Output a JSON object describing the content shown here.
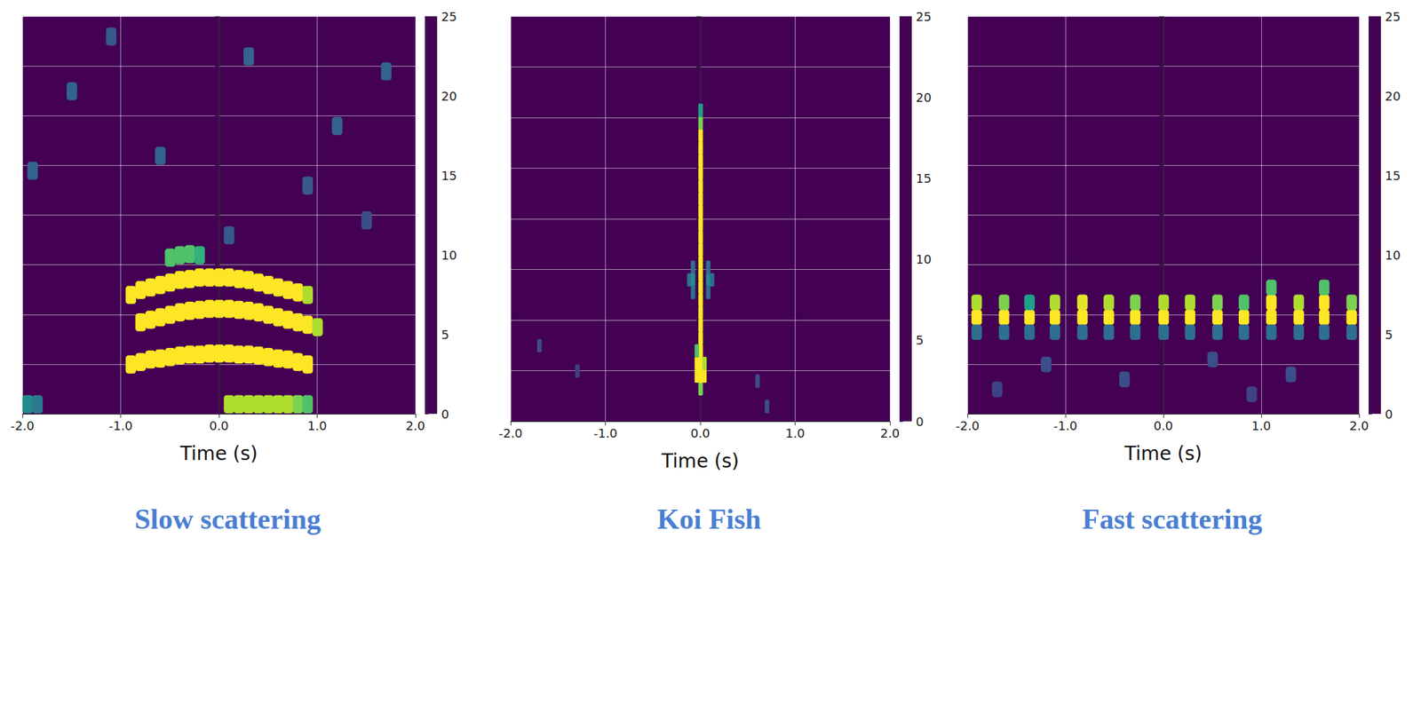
{
  "chart_data": [
    {
      "type": "heatmap",
      "title": "Slow scattering",
      "xlabel": "Time (s)",
      "xlim": [
        -2,
        2
      ],
      "xticks": [
        {
          "value": -2,
          "label": "-2.0"
        },
        {
          "value": -1,
          "label": "-1.0"
        },
        {
          "value": 0,
          "label": "0.0"
        },
        {
          "value": 1,
          "label": "1.0"
        },
        {
          "value": 2,
          "label": "2.0"
        }
      ],
      "ylim": [
        0,
        8
      ],
      "yticks": [
        0,
        1,
        2,
        3,
        4,
        5,
        6,
        7,
        8
      ],
      "tick_labels": "x",
      "grid": true,
      "colorbar": {
        "range": [
          0,
          25
        ],
        "ticks": [
          0,
          5,
          10,
          15,
          20,
          25
        ]
      },
      "cell_size": [
        0.1,
        0.35
      ],
      "cells": [
        [
          -0.9,
          1.0,
          25
        ],
        [
          -0.8,
          1.05,
          25
        ],
        [
          -0.7,
          1.1,
          25
        ],
        [
          -0.6,
          1.12,
          25
        ],
        [
          -0.5,
          1.15,
          25
        ],
        [
          -0.4,
          1.18,
          25
        ],
        [
          -0.3,
          1.2,
          25
        ],
        [
          -0.2,
          1.2,
          25
        ],
        [
          -0.1,
          1.22,
          25
        ],
        [
          0.0,
          1.22,
          25
        ],
        [
          0.1,
          1.22,
          25
        ],
        [
          0.2,
          1.2,
          25
        ],
        [
          0.3,
          1.2,
          25
        ],
        [
          0.4,
          1.18,
          25
        ],
        [
          0.5,
          1.15,
          25
        ],
        [
          0.6,
          1.12,
          25
        ],
        [
          0.7,
          1.1,
          25
        ],
        [
          0.8,
          1.05,
          25
        ],
        [
          0.9,
          1.0,
          25
        ],
        [
          -0.8,
          1.85,
          25
        ],
        [
          -0.7,
          1.9,
          25
        ],
        [
          -0.6,
          1.95,
          25
        ],
        [
          -0.5,
          2.0,
          25
        ],
        [
          -0.4,
          2.05,
          25
        ],
        [
          -0.3,
          2.08,
          25
        ],
        [
          -0.2,
          2.1,
          25
        ],
        [
          -0.1,
          2.12,
          25
        ],
        [
          0.0,
          2.12,
          25
        ],
        [
          0.1,
          2.12,
          25
        ],
        [
          0.2,
          2.1,
          25
        ],
        [
          0.3,
          2.08,
          25
        ],
        [
          0.4,
          2.05,
          25
        ],
        [
          0.5,
          2.0,
          25
        ],
        [
          0.6,
          1.95,
          25
        ],
        [
          0.7,
          1.9,
          25
        ],
        [
          0.8,
          1.85,
          25
        ],
        [
          0.9,
          1.8,
          25
        ],
        [
          1.0,
          1.75,
          22
        ],
        [
          -0.9,
          2.4,
          25
        ],
        [
          -0.8,
          2.5,
          25
        ],
        [
          -0.7,
          2.55,
          25
        ],
        [
          -0.6,
          2.6,
          25
        ],
        [
          -0.5,
          2.65,
          25
        ],
        [
          -0.4,
          2.7,
          25
        ],
        [
          -0.3,
          2.72,
          25
        ],
        [
          -0.2,
          2.75,
          25
        ],
        [
          -0.1,
          2.75,
          25
        ],
        [
          0.0,
          2.75,
          25
        ],
        [
          0.1,
          2.75,
          25
        ],
        [
          0.2,
          2.72,
          25
        ],
        [
          0.3,
          2.7,
          25
        ],
        [
          0.4,
          2.65,
          25
        ],
        [
          0.5,
          2.6,
          25
        ],
        [
          0.6,
          2.55,
          25
        ],
        [
          0.7,
          2.5,
          25
        ],
        [
          0.8,
          2.45,
          25
        ],
        [
          0.9,
          2.4,
          22
        ],
        [
          -0.5,
          3.15,
          18
        ],
        [
          -0.4,
          3.2,
          18
        ],
        [
          -0.3,
          3.22,
          18
        ],
        [
          -0.2,
          3.2,
          16
        ],
        [
          0.1,
          0.2,
          22
        ],
        [
          0.2,
          0.2,
          22
        ],
        [
          0.3,
          0.2,
          22
        ],
        [
          0.4,
          0.2,
          22
        ],
        [
          0.5,
          0.2,
          22
        ],
        [
          0.6,
          0.2,
          22
        ],
        [
          0.7,
          0.2,
          22
        ],
        [
          0.8,
          0.2,
          20
        ],
        [
          0.9,
          0.2,
          18
        ],
        [
          -1.95,
          0.2,
          12
        ],
        [
          -1.85,
          0.2,
          10
        ],
        [
          -1.5,
          6.5,
          8
        ],
        [
          0.3,
          7.2,
          8
        ],
        [
          1.2,
          5.8,
          8
        ],
        [
          -0.6,
          5.2,
          8
        ],
        [
          1.7,
          6.9,
          8
        ],
        [
          -1.9,
          4.9,
          8
        ],
        [
          0.9,
          4.6,
          7
        ],
        [
          -1.1,
          7.6,
          7
        ],
        [
          0.1,
          3.6,
          7
        ],
        [
          1.5,
          3.9,
          6
        ]
      ]
    },
    {
      "type": "heatmap",
      "title": "Koi Fish",
      "xlabel": "Time (s)",
      "xlim": [
        -2,
        2
      ],
      "xticks": [
        {
          "value": -2,
          "label": "-2.0"
        },
        {
          "value": -1,
          "label": "-1.0"
        },
        {
          "value": 0,
          "label": "0.0"
        },
        {
          "value": 1,
          "label": "1.0"
        },
        {
          "value": 2,
          "label": "2.0"
        }
      ],
      "ylim": [
        0,
        8
      ],
      "yticks": [
        0,
        1,
        2,
        3,
        4,
        5,
        6,
        7,
        8
      ],
      "tick_labels": "x",
      "grid": true,
      "colorbar": {
        "range": [
          0,
          25
        ],
        "ticks": [
          0,
          5,
          10,
          15,
          20,
          25
        ]
      },
      "cell_size": [
        0.04,
        0.25
      ],
      "cells": [
        [
          0,
          0.65,
          20
        ],
        [
          0,
          0.9,
          25
        ],
        [
          0,
          1.15,
          25
        ],
        [
          0,
          1.4,
          25
        ],
        [
          0,
          1.65,
          25
        ],
        [
          0,
          1.9,
          25
        ],
        [
          0,
          2.15,
          25
        ],
        [
          0,
          2.4,
          25
        ],
        [
          0,
          2.65,
          25
        ],
        [
          0,
          2.9,
          25
        ],
        [
          0,
          3.15,
          25
        ],
        [
          0,
          3.4,
          25
        ],
        [
          0,
          3.65,
          25
        ],
        [
          0,
          3.9,
          25
        ],
        [
          0,
          4.15,
          25
        ],
        [
          0,
          4.4,
          25
        ],
        [
          0,
          4.65,
          25
        ],
        [
          0,
          4.9,
          25
        ],
        [
          0,
          5.15,
          25
        ],
        [
          0,
          5.4,
          25
        ],
        [
          0,
          5.65,
          25
        ],
        [
          0,
          5.9,
          20
        ],
        [
          0,
          6.15,
          14
        ],
        [
          -0.04,
          0.9,
          25
        ],
        [
          0.04,
          0.9,
          25
        ],
        [
          -0.04,
          1.15,
          25
        ],
        [
          0.04,
          1.15,
          22
        ],
        [
          -0.04,
          1.4,
          18
        ],
        [
          -0.12,
          2.8,
          9
        ],
        [
          -0.08,
          2.8,
          12
        ],
        [
          0.08,
          2.8,
          12
        ],
        [
          0.12,
          2.8,
          9
        ],
        [
          -0.08,
          2.55,
          9
        ],
        [
          0.08,
          2.55,
          9
        ],
        [
          -0.08,
          3.05,
          9
        ],
        [
          0.08,
          3.05,
          9
        ],
        [
          -1.7,
          1.5,
          6
        ],
        [
          0.6,
          0.8,
          6
        ],
        [
          -1.3,
          1.0,
          5
        ],
        [
          0.7,
          0.3,
          6
        ]
      ]
    },
    {
      "type": "heatmap",
      "title": "Fast scattering",
      "xlabel": "Time (s)",
      "xlim": [
        -2,
        2
      ],
      "xticks": [
        {
          "value": -2,
          "label": "-2.0"
        },
        {
          "value": -1,
          "label": "-1.0"
        },
        {
          "value": 0,
          "label": "0.0"
        },
        {
          "value": 1,
          "label": "1.0"
        },
        {
          "value": 2,
          "label": "2.0"
        }
      ],
      "ylim": [
        0,
        8
      ],
      "yticks": [
        0,
        1,
        2,
        3,
        4,
        5,
        6,
        7,
        8
      ],
      "tick_labels": "x",
      "grid": true,
      "colorbar": {
        "range": [
          0,
          25
        ],
        "ticks": [
          0,
          5,
          10,
          15,
          20,
          25
        ]
      },
      "cell_size": [
        0.1,
        0.3
      ],
      "cells": [
        [
          -1.91,
          1.95,
          25
        ],
        [
          -1.91,
          2.25,
          22
        ],
        [
          -1.91,
          1.65,
          9
        ],
        [
          -1.63,
          1.95,
          25
        ],
        [
          -1.63,
          2.25,
          20
        ],
        [
          -1.63,
          1.65,
          9
        ],
        [
          -1.37,
          1.95,
          25
        ],
        [
          -1.37,
          2.25,
          14
        ],
        [
          -1.37,
          1.65,
          9
        ],
        [
          -1.11,
          1.95,
          25
        ],
        [
          -1.11,
          2.25,
          22
        ],
        [
          -1.11,
          1.65,
          9
        ],
        [
          -0.83,
          1.95,
          25
        ],
        [
          -0.83,
          2.25,
          24
        ],
        [
          -0.83,
          1.65,
          9
        ],
        [
          -0.56,
          1.95,
          25
        ],
        [
          -0.56,
          2.25,
          22
        ],
        [
          -0.56,
          1.65,
          9
        ],
        [
          -0.29,
          1.95,
          25
        ],
        [
          -0.29,
          2.25,
          20
        ],
        [
          -0.29,
          1.65,
          9
        ],
        [
          0.0,
          1.95,
          25
        ],
        [
          0.0,
          2.25,
          22
        ],
        [
          0.0,
          1.65,
          9
        ],
        [
          0.27,
          1.95,
          25
        ],
        [
          0.27,
          2.25,
          22
        ],
        [
          0.27,
          1.65,
          9
        ],
        [
          0.55,
          1.95,
          25
        ],
        [
          0.55,
          2.25,
          20
        ],
        [
          0.55,
          1.65,
          9
        ],
        [
          0.82,
          1.95,
          25
        ],
        [
          0.82,
          2.25,
          18
        ],
        [
          0.82,
          1.65,
          9
        ],
        [
          1.1,
          1.95,
          25
        ],
        [
          1.1,
          2.25,
          25
        ],
        [
          1.1,
          2.55,
          18
        ],
        [
          1.1,
          1.65,
          9
        ],
        [
          1.38,
          1.95,
          25
        ],
        [
          1.38,
          2.25,
          22
        ],
        [
          1.38,
          1.65,
          9
        ],
        [
          1.64,
          1.95,
          25
        ],
        [
          1.64,
          2.25,
          25
        ],
        [
          1.64,
          2.55,
          18
        ],
        [
          1.64,
          1.65,
          9
        ],
        [
          1.92,
          1.95,
          25
        ],
        [
          1.92,
          2.25,
          20
        ],
        [
          1.92,
          1.65,
          9
        ],
        [
          -1.2,
          1.0,
          6
        ],
        [
          -0.4,
          0.7,
          6
        ],
        [
          0.5,
          1.1,
          6
        ],
        [
          1.3,
          0.8,
          6
        ],
        [
          -1.7,
          0.5,
          5
        ],
        [
          0.9,
          0.4,
          5
        ]
      ]
    }
  ]
}
